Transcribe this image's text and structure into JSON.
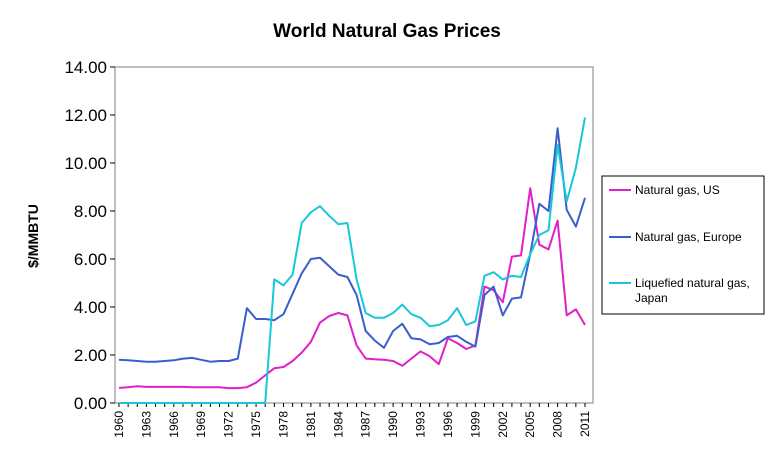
{
  "chart_data": {
    "type": "line",
    "title": "World Natural Gas Prices",
    "xlabel": "",
    "ylabel": "$/MMBTU",
    "ylim": [
      0,
      14
    ],
    "yticks": [
      "0.00",
      "2.00",
      "4.00",
      "6.00",
      "8.00",
      "10.00",
      "12.00",
      "14.00"
    ],
    "x": [
      1960,
      1961,
      1962,
      1963,
      1964,
      1965,
      1966,
      1967,
      1968,
      1969,
      1970,
      1971,
      1972,
      1973,
      1974,
      1975,
      1976,
      1977,
      1978,
      1979,
      1980,
      1981,
      1982,
      1983,
      1984,
      1985,
      1986,
      1987,
      1988,
      1989,
      1990,
      1991,
      1992,
      1993,
      1994,
      1995,
      1996,
      1997,
      1998,
      1999,
      2000,
      2001,
      2002,
      2003,
      2004,
      2005,
      2006,
      2007,
      2008,
      2009,
      2010,
      2011
    ],
    "xticks": [
      "1960",
      "1963",
      "1966",
      "1969",
      "1972",
      "1975",
      "1978",
      "1981",
      "1984",
      "1987",
      "1990",
      "1993",
      "1996",
      "1999",
      "2002",
      "2005",
      "2008",
      "2011"
    ],
    "grid": false,
    "legend_position": "right",
    "series": [
      {
        "name": "Natural gas, US",
        "color": "#E020C8",
        "values": [
          0.63,
          0.66,
          0.7,
          0.67,
          0.67,
          0.67,
          0.67,
          0.67,
          0.66,
          0.66,
          0.66,
          0.66,
          0.62,
          0.62,
          0.66,
          0.85,
          1.15,
          1.45,
          1.5,
          1.75,
          2.1,
          2.55,
          3.35,
          3.62,
          3.75,
          3.65,
          2.4,
          1.85,
          1.82,
          1.8,
          1.75,
          1.55,
          1.85,
          2.15,
          1.95,
          1.62,
          2.7,
          2.5,
          2.25,
          2.4,
          4.85,
          4.7,
          4.2,
          6.1,
          6.15,
          8.95,
          6.6,
          6.4,
          7.6,
          3.65,
          3.9,
          3.25
        ]
      },
      {
        "name": "Natural gas, Europe",
        "color": "#3A5FCD",
        "values": [
          1.8,
          1.78,
          1.75,
          1.72,
          1.72,
          1.75,
          1.78,
          1.85,
          1.88,
          1.8,
          1.72,
          1.75,
          1.75,
          1.85,
          3.95,
          3.5,
          3.5,
          3.45,
          3.7,
          4.55,
          5.4,
          6.0,
          6.05,
          5.7,
          5.35,
          5.25,
          4.5,
          3.0,
          2.6,
          2.3,
          3.0,
          3.3,
          2.7,
          2.65,
          2.45,
          2.5,
          2.75,
          2.8,
          2.55,
          2.35,
          4.5,
          4.85,
          3.65,
          4.35,
          4.4,
          6.2,
          8.3,
          8.0,
          11.45,
          8.05,
          7.35,
          8.55
        ]
      },
      {
        "name": "Liquefied natural gas, Japan",
        "color": "#18C8D8",
        "values": [
          0,
          0,
          0,
          0,
          0,
          0,
          0,
          0,
          0,
          0,
          0,
          0,
          0,
          0,
          0,
          0,
          0,
          5.15,
          4.9,
          5.35,
          7.5,
          7.95,
          8.2,
          7.8,
          7.45,
          7.5,
          5.15,
          3.75,
          3.55,
          3.55,
          3.75,
          4.1,
          3.7,
          3.55,
          3.2,
          3.25,
          3.45,
          3.95,
          3.25,
          3.4,
          5.3,
          5.45,
          5.15,
          5.3,
          5.25,
          6.2,
          7.0,
          7.2,
          10.75,
          8.4,
          9.8,
          11.9
        ]
      }
    ]
  }
}
